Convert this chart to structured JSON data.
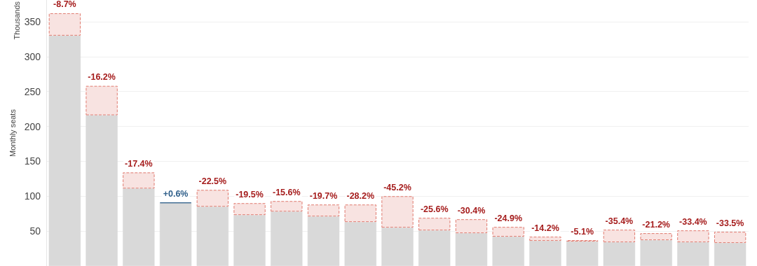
{
  "chart_data": {
    "type": "bar",
    "ylabel": "Monthly seats",
    "annotations": [
      "Thousands",
      {
        "text": "-8.7%",
        "y": 362
      },
      {
        "text": "-16.2%",
        "y": 258
      },
      {
        "text": "-17.4%",
        "y": 134
      },
      {
        "text": "+0.6%",
        "y": 91
      },
      {
        "text": "-22.5%",
        "y": 109
      },
      {
        "text": "-19.5%",
        "y": 90
      },
      {
        "text": "-15.6%",
        "y": 93
      },
      {
        "text": "-19.7%",
        "y": 88
      },
      {
        "text": "-28.2%",
        "y": 88
      },
      {
        "text": "-45.2%",
        "y": 100
      },
      {
        "text": "-25.6%",
        "y": 69
      },
      {
        "text": "-30.4%",
        "y": 67
      },
      {
        "text": "-24.9%",
        "y": 56
      },
      {
        "text": "-14.2%",
        "y": 42
      },
      {
        "text": "-5.1%",
        "y": 37
      },
      {
        "text": "-35.4%",
        "y": 52
      },
      {
        "text": "-21.2%",
        "y": 47
      },
      {
        "text": "-33.4%",
        "y": 51
      },
      {
        "text": "-33.5%",
        "y": 49
      }
    ],
    "categories": [
      null,
      null,
      null,
      null,
      null,
      null,
      null,
      null,
      null,
      null,
      null,
      null,
      null,
      null,
      null,
      null,
      null,
      null,
      null
    ],
    "stacked": true,
    "series": [
      {
        "color": "#d9d9d9",
        "values": [
          330,
          216,
          111,
          90,
          85,
          73,
          78,
          71,
          63,
          55,
          51,
          47,
          42,
          36,
          35,
          34,
          37,
          34,
          33
        ]
      },
      {
        "color": "#f8e3e1",
        "line_style": "dashed",
        "values": [
          32,
          42,
          23,
          null,
          24,
          17,
          15,
          17,
          25,
          45,
          18,
          20,
          14,
          6,
          2,
          18,
          10,
          17,
          16
        ]
      },
      {
        "color": "#2f5f8a",
        "values": [
          null,
          null,
          null,
          1,
          null,
          null,
          null,
          null,
          null,
          null,
          null,
          null,
          null,
          null,
          null,
          null,
          null,
          null,
          null
        ]
      }
    ],
    "ylim": [
      0,
      381
    ],
    "yticks": [
      50,
      100,
      150,
      200,
      250,
      300,
      350
    ],
    "grid": "y",
    "tick_labels": "y"
  }
}
